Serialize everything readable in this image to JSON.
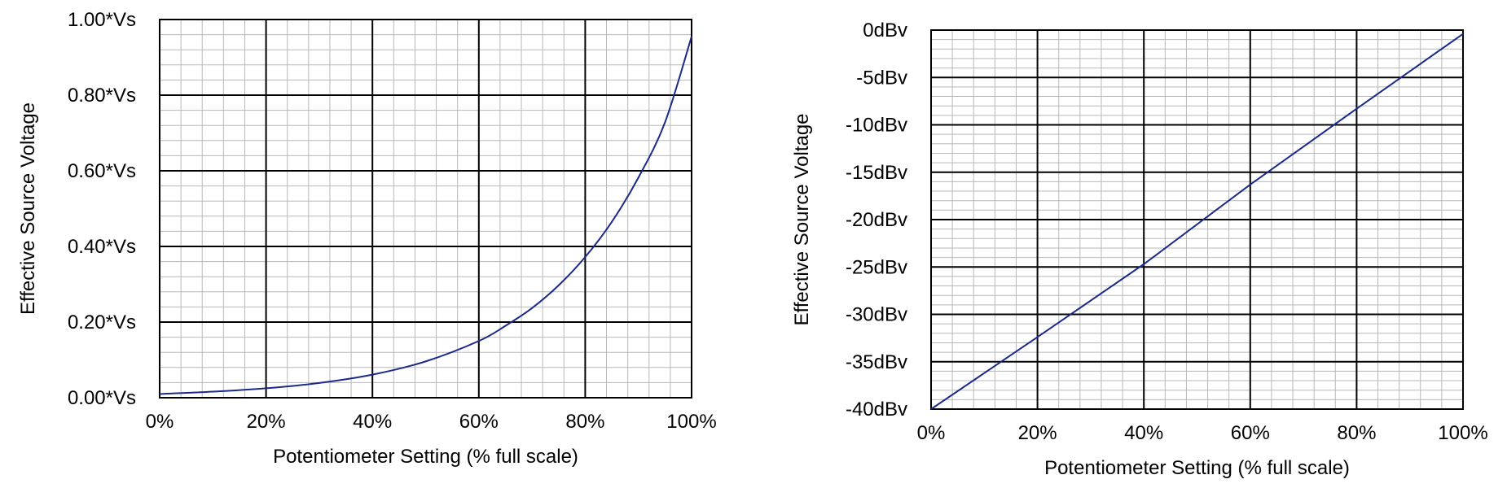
{
  "chart_data": [
    {
      "type": "line",
      "title": "",
      "xlabel": "Potentiometer Setting (% full scale)",
      "ylabel": "Effective Source Voltage",
      "xlim": [
        0,
        100
      ],
      "ylim": [
        0,
        1
      ],
      "x_ticks": [
        {
          "value": 0,
          "label": "0%"
        },
        {
          "value": 20,
          "label": "20%"
        },
        {
          "value": 40,
          "label": "40%"
        },
        {
          "value": 60,
          "label": "60%"
        },
        {
          "value": 80,
          "label": "80%"
        },
        {
          "value": 100,
          "label": "100%"
        }
      ],
      "y_ticks": [
        {
          "value": 0,
          "label": "0.00*Vs"
        },
        {
          "value": 0.2,
          "label": "0.20*Vs"
        },
        {
          "value": 0.4,
          "label": "0.40*Vs"
        },
        {
          "value": 0.6,
          "label": "0.60*Vs"
        },
        {
          "value": 0.8,
          "label": "0.80*Vs"
        },
        {
          "value": 1,
          "label": "1.00*Vs"
        }
      ],
      "x_minor_divisions": 5,
      "y_minor_divisions": 5,
      "grid": true,
      "line_color": "#1a2a8a",
      "series": [
        {
          "x": [
            0,
            10,
            20,
            30,
            40,
            50,
            60,
            65,
            70,
            75,
            80,
            85,
            90,
            95,
            100
          ],
          "y": [
            0.01,
            0.016,
            0.025,
            0.039,
            0.061,
            0.096,
            0.15,
            0.19,
            0.237,
            0.297,
            0.372,
            0.465,
            0.582,
            0.728,
            0.955
          ]
        }
      ]
    },
    {
      "type": "line",
      "title": "",
      "xlabel": "Potentiometer Setting (% full scale)",
      "ylabel": "Effective Source Voltage",
      "xlim": [
        0,
        100
      ],
      "ylim": [
        -40,
        0
      ],
      "x_ticks": [
        {
          "value": 0,
          "label": "0%"
        },
        {
          "value": 20,
          "label": "20%"
        },
        {
          "value": 40,
          "label": "40%"
        },
        {
          "value": 60,
          "label": "60%"
        },
        {
          "value": 80,
          "label": "80%"
        },
        {
          "value": 100,
          "label": "100%"
        }
      ],
      "y_ticks": [
        {
          "value": 0,
          "label": "0dBv"
        },
        {
          "value": -5,
          "label": "-5dBv"
        },
        {
          "value": -10,
          "label": "-10dBv"
        },
        {
          "value": -15,
          "label": "-15dBv"
        },
        {
          "value": -20,
          "label": "-20dBv"
        },
        {
          "value": -25,
          "label": "-25dBv"
        },
        {
          "value": -30,
          "label": "-30dBv"
        },
        {
          "value": -35,
          "label": "-35dBv"
        },
        {
          "value": -40,
          "label": "-40dBv"
        }
      ],
      "x_minor_divisions": 5,
      "y_minor_divisions": 5,
      "grid": true,
      "line_color": "#1a2a8a",
      "series": [
        {
          "x": [
            0,
            20,
            40,
            60,
            80,
            100
          ],
          "y": [
            -40,
            -32.4,
            -24.7,
            -16.3,
            -8.3,
            -0.4
          ]
        }
      ]
    }
  ]
}
